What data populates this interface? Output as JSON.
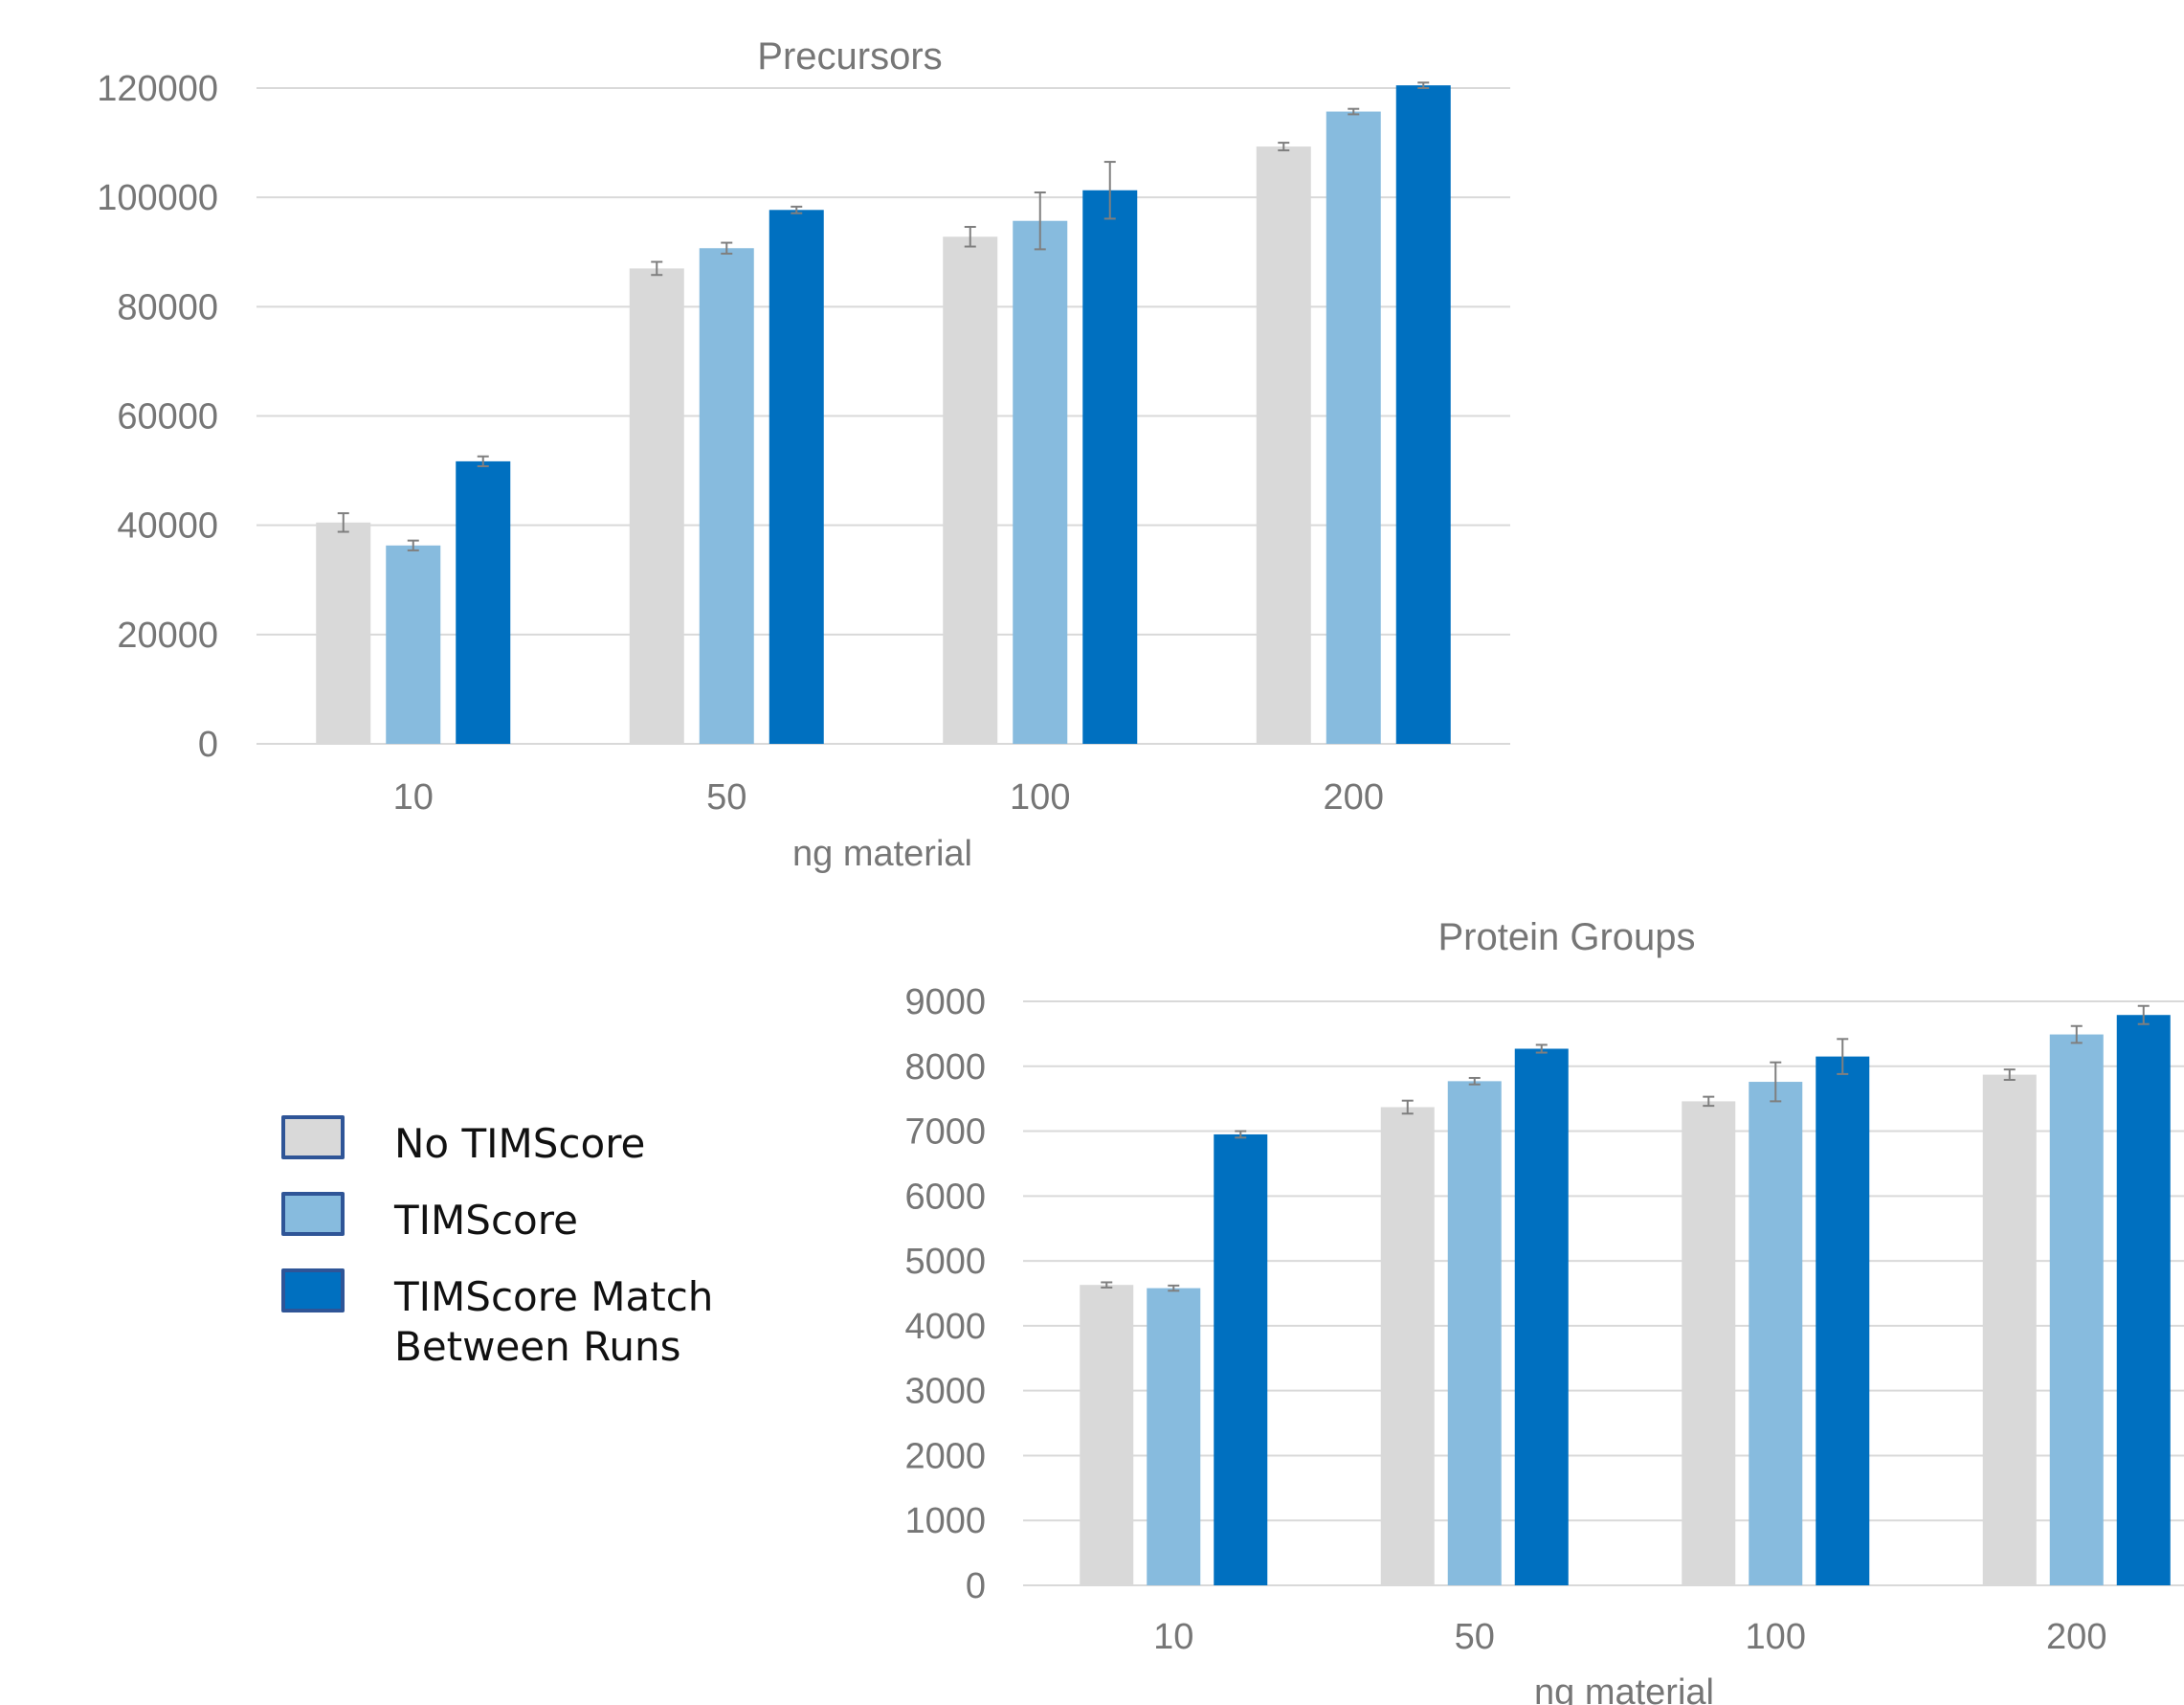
{
  "chart_data": [
    {
      "type": "bar",
      "title": "Precursors",
      "xlabel": "ng material",
      "ylabel": "",
      "categories": [
        "10",
        "50",
        "100",
        "200"
      ],
      "ylim": [
        0,
        120000
      ],
      "yticks": [
        "0",
        "20000",
        "40000",
        "60000",
        "80000",
        "100000",
        "120000"
      ],
      "grid": true,
      "series": [
        {
          "name": "No TIMScore",
          "color": "#d9d9d9",
          "values": [
            40500,
            87000,
            92800,
            109300
          ],
          "errors": [
            1700,
            1200,
            1800,
            700
          ]
        },
        {
          "name": "TIMScore",
          "color": "#87bbde",
          "values": [
            36300,
            90700,
            95700,
            115700
          ],
          "errors": [
            900,
            1000,
            5200,
            500
          ]
        },
        {
          "name": "TIMScore Match Between Runs",
          "color": "#0070c0",
          "values": [
            51700,
            97700,
            101300,
            120500
          ],
          "errors": [
            900,
            600,
            5200,
            500
          ]
        }
      ]
    },
    {
      "type": "bar",
      "title": "Protein Groups",
      "xlabel": "ng material",
      "ylabel": "",
      "categories": [
        "10",
        "50",
        "100",
        "200"
      ],
      "ylim": [
        0,
        9000
      ],
      "yticks": [
        "0",
        "1000",
        "2000",
        "3000",
        "4000",
        "5000",
        "6000",
        "7000",
        "8000",
        "9000"
      ],
      "grid": true,
      "series": [
        {
          "name": "No TIMScore",
          "color": "#d9d9d9",
          "values": [
            4630,
            7370,
            7460,
            7870
          ],
          "errors": [
            40,
            100,
            70,
            80
          ]
        },
        {
          "name": "TIMScore",
          "color": "#87bbde",
          "values": [
            4580,
            7770,
            7760,
            8490
          ],
          "errors": [
            40,
            50,
            300,
            130
          ]
        },
        {
          "name": "TIMScore Match Between Runs",
          "color": "#0070c0",
          "values": [
            6950,
            8270,
            8150,
            8790
          ],
          "errors": [
            50,
            60,
            270,
            140
          ]
        }
      ]
    }
  ],
  "legend": {
    "placement": "left",
    "items": [
      {
        "label": "No TIMScore",
        "color": "#d9d9d9"
      },
      {
        "label": "TIMScore",
        "color": "#87bbde"
      },
      {
        "label": "TIMScore Match\nBetween Runs",
        "color": "#0070c0"
      }
    ]
  },
  "colors": {
    "axis_text": "#767676",
    "grid": "#d9d9d9",
    "error_bar": "#7f7f7f"
  }
}
